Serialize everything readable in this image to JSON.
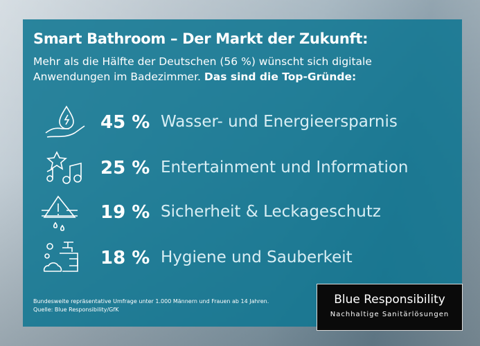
{
  "title": "Smart Bathroom – Der Markt der Zukunft:",
  "subtitle": {
    "text": "Mehr als die Hälfte der Deutschen (56 %) wünscht sich digitale Anwendungen im Badezimmer.",
    "bold": "Das sind die Top-Gründe:"
  },
  "items": [
    {
      "percent": "45 %",
      "label": "Wasser- und Energieersparnis",
      "icon": "water-hand-icon"
    },
    {
      "percent": "25 %",
      "label": "Entertainment und Information",
      "icon": "star-music-icon"
    },
    {
      "percent": "19 %",
      "label": "Sicherheit & Leckageschutz",
      "icon": "warning-leak-icon"
    },
    {
      "percent": "18 %",
      "label": "Hygiene und Sauberkeit",
      "icon": "soap-dispenser-icon"
    }
  ],
  "footnote": {
    "line1": "Bundesweite repräsentative Umfrage unter 1.000 Männern und Frauen ab 14 Jahren.",
    "line2": "Quelle: Blue Responsibility/GfK"
  },
  "logo": {
    "name": "Blue Responsibility",
    "tagline": "Nachhaltige Sanitärlösungen"
  },
  "colors": {
    "panel": "#0e7691",
    "text": "#ffffff"
  }
}
